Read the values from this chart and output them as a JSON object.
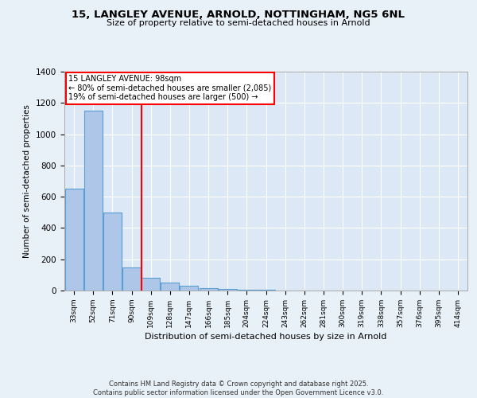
{
  "title1": "15, LANGLEY AVENUE, ARNOLD, NOTTINGHAM, NG5 6NL",
  "title2": "Size of property relative to semi-detached houses in Arnold",
  "xlabel": "Distribution of semi-detached houses by size in Arnold",
  "ylabel": "Number of semi-detached properties",
  "bar_labels": [
    "33sqm",
    "52sqm",
    "71sqm",
    "90sqm",
    "109sqm",
    "128sqm",
    "147sqm",
    "166sqm",
    "185sqm",
    "204sqm",
    "224sqm",
    "243sqm",
    "262sqm",
    "281sqm",
    "300sqm",
    "319sqm",
    "338sqm",
    "357sqm",
    "376sqm",
    "395sqm",
    "414sqm"
  ],
  "bar_values": [
    650,
    1150,
    500,
    150,
    80,
    50,
    30,
    15,
    10,
    5,
    3,
    2,
    1,
    1,
    1,
    1,
    1,
    1,
    1,
    0,
    0
  ],
  "bar_color": "#aec6e8",
  "bar_edge_color": "#5a9fd4",
  "annotation_title": "15 LANGLEY AVENUE: 98sqm",
  "annotation_line1": "← 80% of semi-detached houses are smaller (2,085)",
  "annotation_line2": "19% of semi-detached houses are larger (500) →",
  "red_line_x": 3.5,
  "ylim": [
    0,
    1400
  ],
  "yticks": [
    0,
    200,
    400,
    600,
    800,
    1000,
    1200,
    1400
  ],
  "background_color": "#e8f0f8",
  "plot_bg_color": "#dce8f5",
  "grid_color": "#ffffff",
  "footer_line1": "Contains HM Land Registry data © Crown copyright and database right 2025.",
  "footer_line2": "Contains public sector information licensed under the Open Government Licence v3.0."
}
